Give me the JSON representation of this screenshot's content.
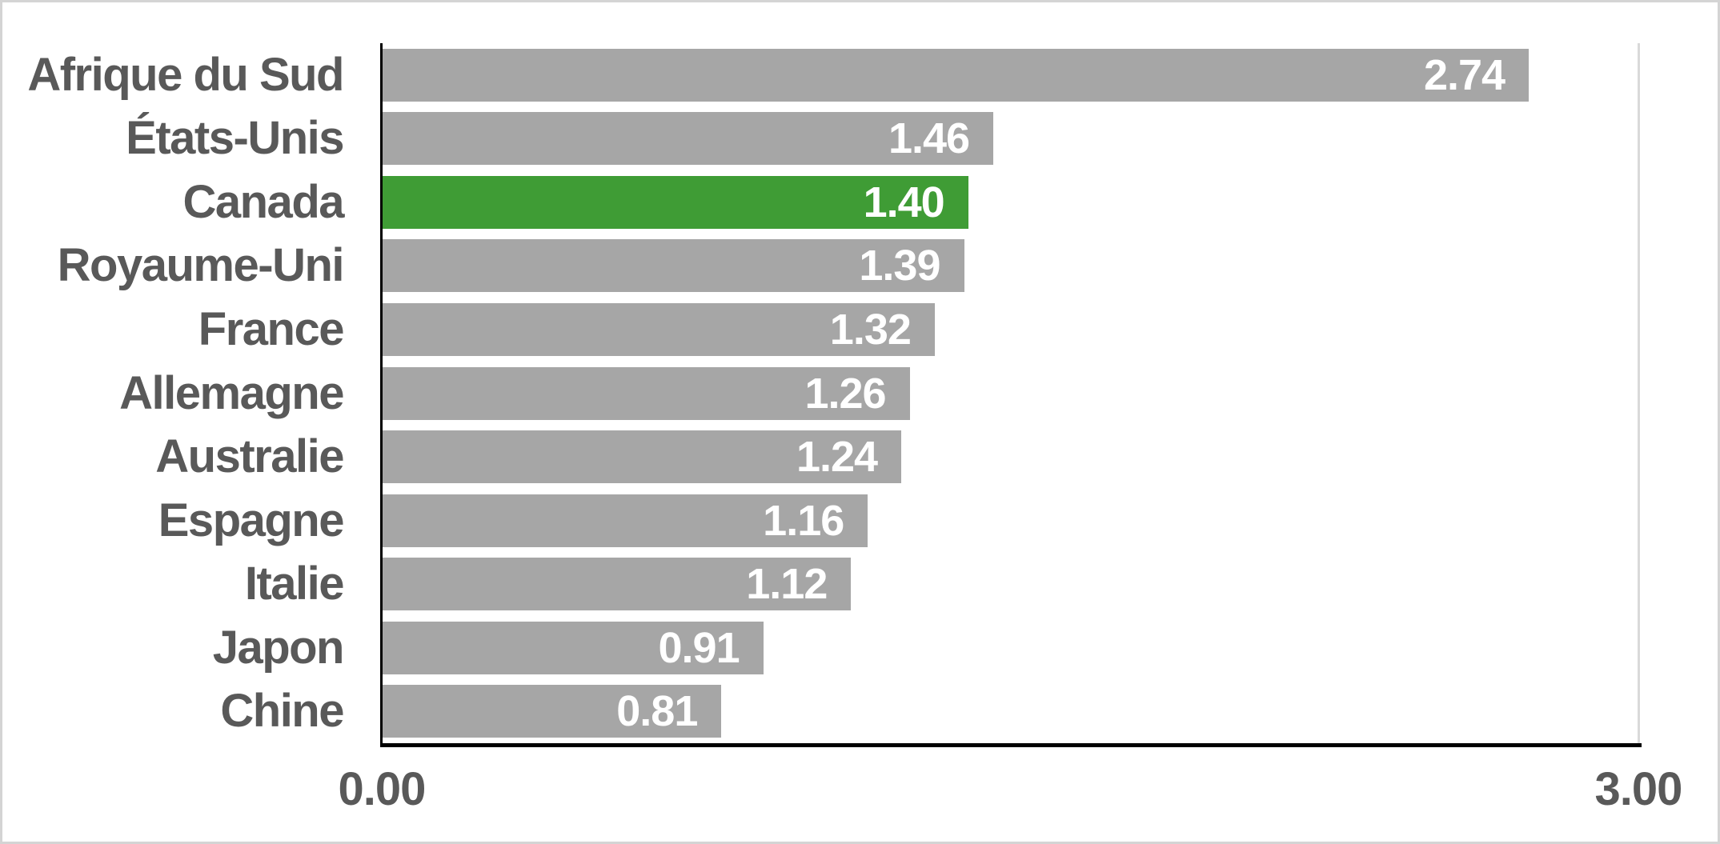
{
  "chart_data": {
    "type": "bar",
    "orientation": "horizontal",
    "categories": [
      "Afrique du Sud",
      "États-Unis",
      "Canada",
      "Royaume-Uni",
      "France",
      "Allemagne",
      "Australie",
      "Espagne",
      "Italie",
      "Japon",
      "Chine"
    ],
    "values": [
      2.74,
      1.46,
      1.4,
      1.39,
      1.32,
      1.26,
      1.24,
      1.16,
      1.12,
      0.91,
      0.81
    ],
    "value_labels": [
      "2.74",
      "1.46",
      "1.40",
      "1.39",
      "1.32",
      "1.26",
      "1.24",
      "1.16",
      "1.12",
      "0.91",
      "0.81"
    ],
    "highlighted_category": "Canada",
    "highlighted_index": 2,
    "title": "",
    "xlabel": "",
    "ylabel": "",
    "xlim": [
      0,
      3
    ],
    "x_ticks": [
      {
        "value": 0,
        "label": "0.00"
      },
      {
        "value": 3,
        "label": "3.00"
      }
    ],
    "grid": false,
    "legend": false
  },
  "colors": {
    "bar_default": "#a6a6a6",
    "bar_highlight": "#3f9c35",
    "category_text": "#595959",
    "value_text": "#ffffff",
    "axis_line": "#000000",
    "plot_right_border": "#d9d9d9",
    "outer_border": "#d4d4d4",
    "background": "#ffffff"
  },
  "axis": {
    "min_label": "0.00",
    "max_label": "3.00"
  }
}
